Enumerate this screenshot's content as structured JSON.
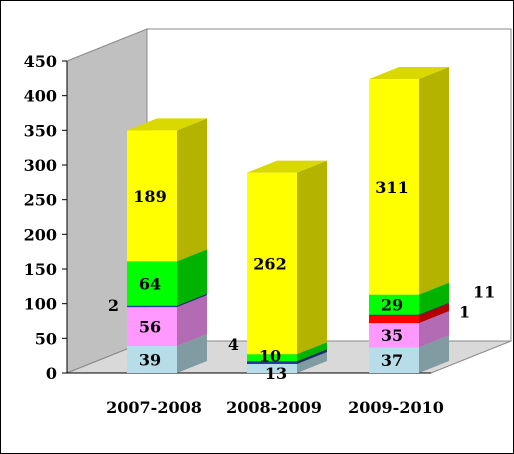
{
  "chart_data": {
    "type": "bar",
    "stacked": true,
    "style": "3d",
    "categories": [
      "2007-2008",
      "2008-2009",
      "2009-2010"
    ],
    "ylim": [
      0,
      450
    ],
    "yticks": [
      "0",
      "50",
      "100",
      "150",
      "200",
      "250",
      "300",
      "350",
      "400",
      "450"
    ],
    "grid": false,
    "legend": "none",
    "series": [
      {
        "color": "#b7dde8",
        "values": [
          39,
          13,
          37
        ],
        "labels": [
          "39",
          "13",
          "37"
        ]
      },
      {
        "color": "#1f3d99",
        "values": [
          0,
          4,
          0
        ],
        "labels": [
          "",
          "4",
          ""
        ]
      },
      {
        "color": "#ff99ff",
        "values": [
          56,
          0,
          35
        ],
        "labels": [
          "56",
          "",
          "35"
        ]
      },
      {
        "color": "#ff0000",
        "values": [
          0,
          0,
          11
        ],
        "labels": [
          "",
          "",
          "11"
        ]
      },
      {
        "color": "#1f3d99",
        "values": [
          2,
          0,
          1
        ],
        "labels": [
          "2",
          "",
          "1"
        ]
      },
      {
        "color": "#00ff00",
        "values": [
          64,
          10,
          29
        ],
        "labels": [
          "64",
          "10",
          "29"
        ]
      },
      {
        "color": "#ffff00",
        "values": [
          189,
          262,
          311
        ],
        "labels": [
          "189",
          "262",
          "311"
        ]
      }
    ]
  }
}
